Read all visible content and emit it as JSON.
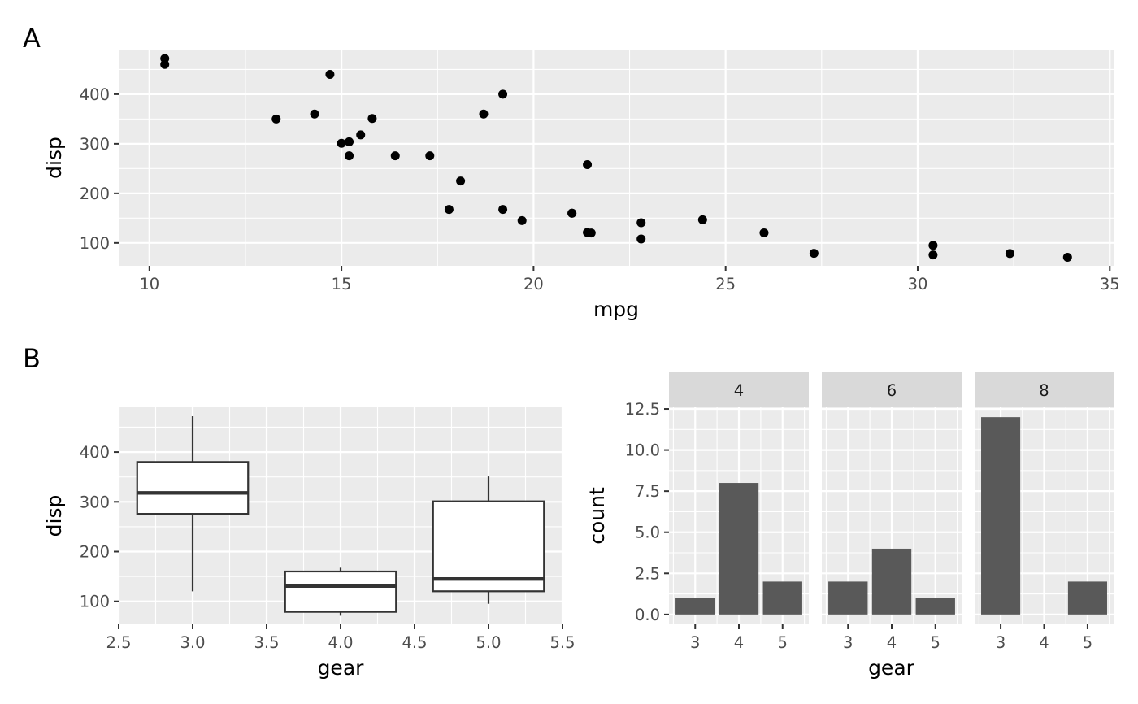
{
  "figure": {
    "tags": [
      "A",
      "B"
    ],
    "colors": {
      "panel_bg": "#ebebeb",
      "grid": "#ffffff",
      "strip_bg": "#d9d9d9",
      "point": "#000000",
      "bar": "#595959",
      "box_line": "#333333",
      "tick_text": "#4d4d4d",
      "tick_mark": "#333333"
    }
  },
  "chart_data": [
    {
      "id": "A",
      "type": "scatter",
      "xlabel": "mpg",
      "ylabel": "disp",
      "xlim": [
        9.2,
        35.1
      ],
      "ylim": [
        53.8,
        490.0
      ],
      "xticks": [
        10,
        15,
        20,
        25,
        30,
        35
      ],
      "yticks": [
        100,
        200,
        300,
        400
      ],
      "grid": true,
      "points": [
        {
          "x": 21.0,
          "y": 160
        },
        {
          "x": 21.0,
          "y": 160
        },
        {
          "x": 22.8,
          "y": 108
        },
        {
          "x": 21.4,
          "y": 258
        },
        {
          "x": 18.7,
          "y": 360
        },
        {
          "x": 18.1,
          "y": 225
        },
        {
          "x": 14.3,
          "y": 360
        },
        {
          "x": 24.4,
          "y": 146.7
        },
        {
          "x": 22.8,
          "y": 140.8
        },
        {
          "x": 19.2,
          "y": 167.6
        },
        {
          "x": 17.8,
          "y": 167.6
        },
        {
          "x": 16.4,
          "y": 275.8
        },
        {
          "x": 17.3,
          "y": 275.8
        },
        {
          "x": 15.2,
          "y": 275.8
        },
        {
          "x": 10.4,
          "y": 472
        },
        {
          "x": 10.4,
          "y": 460
        },
        {
          "x": 14.7,
          "y": 440
        },
        {
          "x": 32.4,
          "y": 78.7
        },
        {
          "x": 30.4,
          "y": 75.7
        },
        {
          "x": 33.9,
          "y": 71.1
        },
        {
          "x": 21.5,
          "y": 120.1
        },
        {
          "x": 15.5,
          "y": 318
        },
        {
          "x": 15.2,
          "y": 304
        },
        {
          "x": 13.3,
          "y": 350
        },
        {
          "x": 19.2,
          "y": 400
        },
        {
          "x": 27.3,
          "y": 79
        },
        {
          "x": 26.0,
          "y": 120.3
        },
        {
          "x": 30.4,
          "y": 95.1
        },
        {
          "x": 15.8,
          "y": 351
        },
        {
          "x": 19.7,
          "y": 145
        },
        {
          "x": 15.0,
          "y": 301
        },
        {
          "x": 21.4,
          "y": 121
        }
      ]
    },
    {
      "id": "B-box",
      "type": "box",
      "xlabel": "gear",
      "ylabel": "disp",
      "xlim": [
        2.5,
        5.5
      ],
      "ylim": [
        53.8,
        490.0
      ],
      "xticks": [
        "2.5",
        "3.0",
        "3.5",
        "4.0",
        "4.5",
        "5.0",
        "5.5"
      ],
      "yticks": [
        100,
        200,
        300,
        400
      ],
      "grid": true,
      "boxes": [
        {
          "x": 3,
          "min": 120.1,
          "q1": 275.8,
          "median": 318,
          "q3": 380,
          "max": 472
        },
        {
          "x": 4,
          "min": 71.1,
          "q1": 78.9,
          "median": 130.9,
          "q3": 160,
          "max": 167.6
        },
        {
          "x": 5,
          "min": 95.1,
          "q1": 120.3,
          "median": 145,
          "q3": 301,
          "max": 351
        }
      ]
    },
    {
      "id": "B-bar",
      "type": "bar",
      "facet_by": "cyl",
      "xlabel": "gear",
      "ylabel": "count",
      "ylim": [
        -0.6,
        12.6
      ],
      "yticks": [
        "0.0",
        "2.5",
        "5.0",
        "7.5",
        "10.0",
        "12.5"
      ],
      "categories": [
        "3",
        "4",
        "5"
      ],
      "grid": true,
      "facets": [
        {
          "label": "4",
          "values": [
            1,
            8,
            2
          ]
        },
        {
          "label": "6",
          "values": [
            2,
            4,
            1
          ]
        },
        {
          "label": "8",
          "values": [
            12,
            0,
            2
          ]
        }
      ]
    }
  ]
}
